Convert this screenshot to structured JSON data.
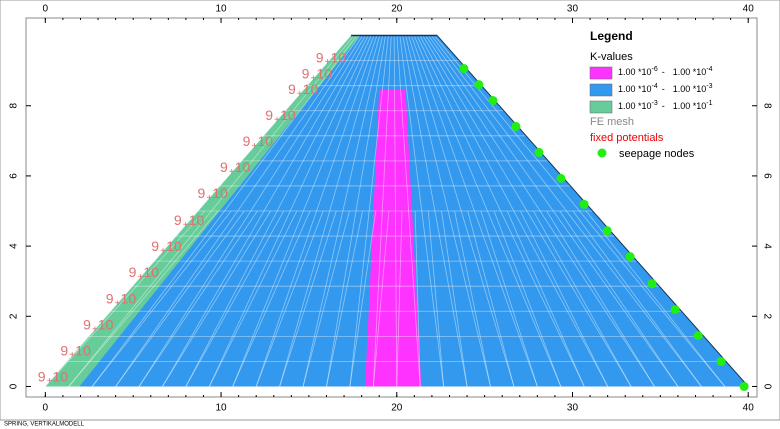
{
  "chart_data": {
    "type": "mesh",
    "status": "SPRING, VERTIKALMODELL",
    "xlim": [
      -1.1,
      40.5
    ],
    "ylim": [
      -0.3,
      10.5
    ],
    "xticks": [
      0,
      10,
      20,
      30,
      40
    ],
    "yticks": [
      0,
      2,
      4,
      6,
      8
    ],
    "dam": {
      "color": "#3399ee",
      "x": [
        0,
        17.4,
        22.3,
        40
      ],
      "y": [
        0,
        10,
        10,
        0
      ]
    },
    "filter": {
      "color": "#66cc99",
      "x": [
        0,
        17.4,
        17.9,
        1.94
      ],
      "y": [
        0,
        10,
        10,
        0
      ]
    },
    "core": {
      "color": "#ff33ff",
      "x": [
        18.2,
        19.0,
        20.5,
        21.4
      ],
      "y": [
        0,
        8.46,
        8.46,
        0
      ]
    },
    "fixed_potentials": {
      "color": "#e07070",
      "text": [
        "9",
        "10"
      ],
      "x": [
        0.24,
        1.53,
        2.82,
        4.11,
        5.41,
        6.7,
        7.99,
        9.33,
        10.61,
        11.9,
        13.19,
        14.48,
        15.26,
        16.06
      ],
      "y": [
        0.14,
        0.88,
        1.62,
        2.36,
        3.11,
        3.85,
        4.59,
        5.36,
        6.1,
        6.84,
        7.58,
        8.32,
        8.77,
        9.23
      ]
    },
    "seepage_nodes": {
      "color": "#22ee11",
      "x": [
        23.82,
        24.67,
        25.47,
        26.78,
        28.09,
        29.34,
        30.66,
        31.97,
        33.28,
        34.53,
        35.84,
        37.15,
        38.46,
        39.77
      ],
      "y": [
        9.06,
        8.6,
        8.15,
        7.41,
        6.67,
        5.93,
        5.19,
        4.44,
        3.7,
        2.93,
        2.19,
        1.45,
        0.71,
        0.0
      ]
    },
    "legend": {
      "title": "Legend",
      "k_title": "K-values",
      "k_rows": [
        {
          "color": "#ff33ff",
          "lo": "1.00 *10",
          "lo_exp": "-6",
          "dash": "-",
          "hi": "1.00 *10",
          "hi_exp": "-4"
        },
        {
          "color": "#3399ee",
          "lo": "1.00 *10",
          "lo_exp": "-4",
          "dash": "-",
          "hi": "1.00 *10",
          "hi_exp": "-3"
        },
        {
          "color": "#66cc99",
          "lo": "1.00 *10",
          "lo_exp": "-3",
          "dash": "-",
          "hi": "1.00 *10",
          "hi_exp": "-1"
        }
      ],
      "mesh": "FE mesh",
      "potentials": "fixed potentials",
      "seepage": "seepage nodes"
    }
  }
}
